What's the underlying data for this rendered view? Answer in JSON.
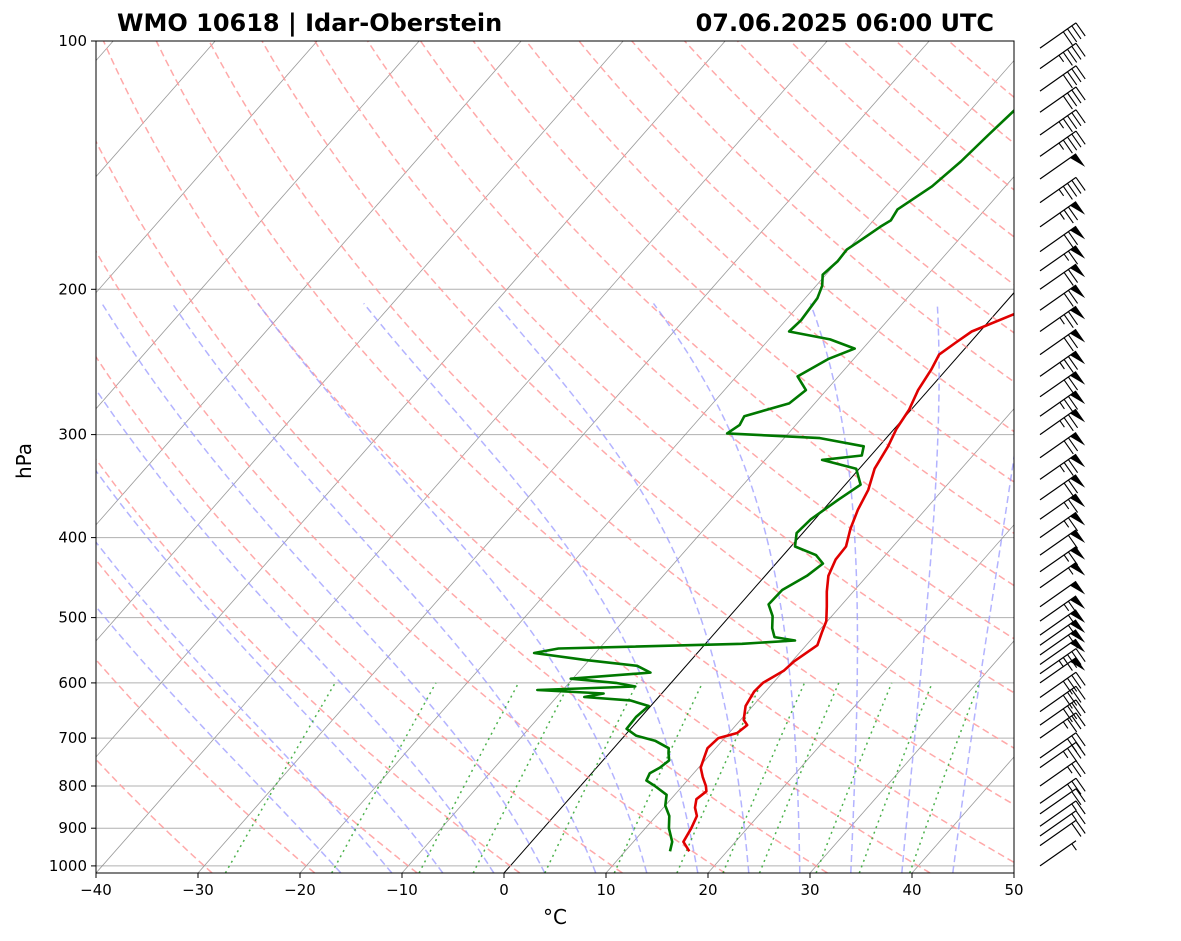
{
  "chart_data": {
    "type": "skew-t log-p",
    "title_left": "WMO 10618 | Idar-Oberstein",
    "title_right": "07.06.2025 06:00 UTC",
    "xlabel": "°C",
    "ylabel": "hPa",
    "xlim": [
      -40,
      50
    ],
    "ylim": [
      1020,
      100
    ],
    "xticks": [
      -40,
      -30,
      -20,
      -10,
      0,
      10,
      20,
      30,
      40,
      50
    ],
    "xtick_labels": [
      "−40",
      "−30",
      "−20",
      "−10",
      "0",
      "10",
      "20",
      "30",
      "40",
      "50"
    ],
    "yticks": [
      1000,
      900,
      800,
      700,
      600,
      500,
      400,
      300,
      200,
      100
    ],
    "ytick_labels": [
      "1000",
      "900",
      "800",
      "700",
      "600",
      "500",
      "400",
      "300",
      "200",
      "100"
    ],
    "grid": true,
    "colors": {
      "temperature": "#e00000",
      "dewpoint": "#007800",
      "dry_adiabats": "#ff9a9a",
      "moist_adiabats": "#9a9aff",
      "mixing_ratio": "#3aaa3a",
      "isotherms": "#808080",
      "zero_isotherm": "#000000",
      "grid": "#b0b0b0"
    },
    "temperature": [
      {
        "p": 960,
        "t": 16.3
      },
      {
        "p": 935,
        "t": 14.9
      },
      {
        "p": 900,
        "t": 14.5
      },
      {
        "p": 870,
        "t": 14.0
      },
      {
        "p": 850,
        "t": 13.1
      },
      {
        "p": 830,
        "t": 12.5
      },
      {
        "p": 812,
        "t": 12.8
      },
      {
        "p": 800,
        "t": 12.3
      },
      {
        "p": 780,
        "t": 11.2
      },
      {
        "p": 760,
        "t": 10.2
      },
      {
        "p": 740,
        "t": 9.7
      },
      {
        "p": 720,
        "t": 9.2
      },
      {
        "p": 700,
        "t": 9.4
      },
      {
        "p": 690,
        "t": 10.8
      },
      {
        "p": 675,
        "t": 11.1
      },
      {
        "p": 665,
        "t": 10.3
      },
      {
        "p": 640,
        "t": 9.3
      },
      {
        "p": 615,
        "t": 8.9
      },
      {
        "p": 600,
        "t": 9.0
      },
      {
        "p": 580,
        "t": 10.0
      },
      {
        "p": 565,
        "t": 10.2
      },
      {
        "p": 540,
        "t": 11.1
      },
      {
        "p": 520,
        "t": 10.4
      },
      {
        "p": 505,
        "t": 9.9
      },
      {
        "p": 485,
        "t": 8.7
      },
      {
        "p": 465,
        "t": 7.4
      },
      {
        "p": 445,
        "t": 6.2
      },
      {
        "p": 425,
        "t": 5.5
      },
      {
        "p": 410,
        "t": 5.4
      },
      {
        "p": 390,
        "t": 4.3
      },
      {
        "p": 370,
        "t": 3.4
      },
      {
        "p": 350,
        "t": 2.7
      },
      {
        "p": 330,
        "t": 1.5
      },
      {
        "p": 310,
        "t": 0.9
      },
      {
        "p": 295,
        "t": 0.2
      },
      {
        "p": 280,
        "t": -0.2
      },
      {
        "p": 265,
        "t": -1.0
      },
      {
        "p": 250,
        "t": -1.5
      },
      {
        "p": 240,
        "t": -2.0
      },
      {
        "p": 232,
        "t": -1.4
      },
      {
        "p": 225,
        "t": -0.8
      },
      {
        "p": 215,
        "t": 1.7
      },
      {
        "p": 208,
        "t": 3.5
      },
      {
        "p": 200,
        "t": 3.7
      },
      {
        "p": 190,
        "t": 5.2
      },
      {
        "p": 180,
        "t": 5.8
      },
      {
        "p": 170,
        "t": 6.6
      },
      {
        "p": 160,
        "t": 8.3
      },
      {
        "p": 150,
        "t": 9.0
      },
      {
        "p": 140,
        "t": 9.5
      },
      {
        "p": 130,
        "t": 10.2
      },
      {
        "p": 120,
        "t": 11.5
      },
      {
        "p": 112,
        "t": 12.7
      },
      {
        "p": 106,
        "t": 14.3
      },
      {
        "p": 100,
        "t": 15.2
      }
    ],
    "dewpoint": [
      {
        "p": 960,
        "t": 14.4
      },
      {
        "p": 935,
        "t": 13.8
      },
      {
        "p": 900,
        "t": 12.3
      },
      {
        "p": 870,
        "t": 11.3
      },
      {
        "p": 845,
        "t": 10.0
      },
      {
        "p": 820,
        "t": 9.2
      },
      {
        "p": 800,
        "t": 7.3
      },
      {
        "p": 788,
        "t": 6.0
      },
      {
        "p": 772,
        "t": 5.7
      },
      {
        "p": 760,
        "t": 6.2
      },
      {
        "p": 745,
        "t": 6.5
      },
      {
        "p": 730,
        "t": 5.8
      },
      {
        "p": 720,
        "t": 5.4
      },
      {
        "p": 705,
        "t": 3.4
      },
      {
        "p": 695,
        "t": 1.1
      },
      {
        "p": 682,
        "t": -0.4
      },
      {
        "p": 660,
        "t": -0.5
      },
      {
        "p": 640,
        "t": -0.2
      },
      {
        "p": 630,
        "t": -2.5
      },
      {
        "p": 624,
        "t": -7.3
      },
      {
        "p": 618,
        "t": -5.7
      },
      {
        "p": 612,
        "t": -12.5
      },
      {
        "p": 606,
        "t": -3.2
      },
      {
        "p": 600,
        "t": -5.4
      },
      {
        "p": 593,
        "t": -10.2
      },
      {
        "p": 583,
        "t": -2.9
      },
      {
        "p": 572,
        "t": -4.8
      },
      {
        "p": 563,
        "t": -10.3
      },
      {
        "p": 552,
        "t": -16.0
      },
      {
        "p": 545,
        "t": -14.0
      },
      {
        "p": 538,
        "t": 3.6
      },
      {
        "p": 533,
        "t": 8.5
      },
      {
        "p": 528,
        "t": 6.2
      },
      {
        "p": 515,
        "t": 5.2
      },
      {
        "p": 498,
        "t": 4.2
      },
      {
        "p": 482,
        "t": 2.8
      },
      {
        "p": 463,
        "t": 2.9
      },
      {
        "p": 445,
        "t": 4.1
      },
      {
        "p": 430,
        "t": 4.6
      },
      {
        "p": 420,
        "t": 3.2
      },
      {
        "p": 410,
        "t": 0.4
      },
      {
        "p": 395,
        "t": -0.6
      },
      {
        "p": 380,
        "t": -0.4
      },
      {
        "p": 360,
        "t": 0.6
      },
      {
        "p": 345,
        "t": 1.5
      },
      {
        "p": 330,
        "t": -0.3
      },
      {
        "p": 322,
        "t": -4.4
      },
      {
        "p": 318,
        "t": -0.9
      },
      {
        "p": 310,
        "t": -1.5
      },
      {
        "p": 303,
        "t": -6.5
      },
      {
        "p": 299,
        "t": -16.0
      },
      {
        "p": 292,
        "t": -15.5
      },
      {
        "p": 285,
        "t": -15.8
      },
      {
        "p": 275,
        "t": -12.5
      },
      {
        "p": 265,
        "t": -12.0
      },
      {
        "p": 255,
        "t": -14.0
      },
      {
        "p": 243,
        "t": -12.5
      },
      {
        "p": 236,
        "t": -10.8
      },
      {
        "p": 230,
        "t": -14.0
      },
      {
        "p": 225,
        "t": -18.7
      },
      {
        "p": 218,
        "t": -18.5
      },
      {
        "p": 205,
        "t": -18.8
      },
      {
        "p": 198,
        "t": -19.4
      },
      {
        "p": 192,
        "t": -20.3
      },
      {
        "p": 185,
        "t": -20.0
      },
      {
        "p": 179,
        "t": -20.1
      },
      {
        "p": 174,
        "t": -19.5
      },
      {
        "p": 168,
        "t": -18.8
      },
      {
        "p": 165,
        "t": -18.3
      },
      {
        "p": 160,
        "t": -18.6
      },
      {
        "p": 150,
        "t": -17.2
      },
      {
        "p": 140,
        "t": -16.5
      },
      {
        "p": 130,
        "t": -16.1
      },
      {
        "p": 120,
        "t": -15.6
      },
      {
        "p": 110,
        "t": -15.2
      },
      {
        "p": 105,
        "t": -14.3
      },
      {
        "p": 100,
        "t": -14.3
      }
    ],
    "wind_barbs": [
      {
        "p": 1000,
        "speed": 5
      },
      {
        "p": 945,
        "speed": 20
      },
      {
        "p": 920,
        "speed": 15
      },
      {
        "p": 895,
        "speed": 15
      },
      {
        "p": 865,
        "speed": 20
      },
      {
        "p": 840,
        "speed": 25
      },
      {
        "p": 800,
        "speed": 25
      },
      {
        "p": 760,
        "speed": 35
      },
      {
        "p": 740,
        "speed": 30
      },
      {
        "p": 700,
        "speed": 35
      },
      {
        "p": 675,
        "speed": 40
      },
      {
        "p": 650,
        "speed": 40
      },
      {
        "p": 625,
        "speed": 40
      },
      {
        "p": 600,
        "speed": 50
      },
      {
        "p": 585,
        "speed": 45
      },
      {
        "p": 570,
        "speed": 50
      },
      {
        "p": 555,
        "speed": 60
      },
      {
        "p": 540,
        "speed": 55
      },
      {
        "p": 525,
        "speed": 60
      },
      {
        "p": 505,
        "speed": 65
      },
      {
        "p": 485,
        "speed": 50
      },
      {
        "p": 460,
        "speed": 55
      },
      {
        "p": 440,
        "speed": 65
      },
      {
        "p": 420,
        "speed": 60
      },
      {
        "p": 400,
        "speed": 65
      },
      {
        "p": 380,
        "speed": 65
      },
      {
        "p": 360,
        "speed": 70
      },
      {
        "p": 340,
        "speed": 75
      },
      {
        "p": 320,
        "speed": 70
      },
      {
        "p": 300,
        "speed": 75
      },
      {
        "p": 285,
        "speed": 75
      },
      {
        "p": 270,
        "speed": 70
      },
      {
        "p": 255,
        "speed": 75
      },
      {
        "p": 240,
        "speed": 70
      },
      {
        "p": 225,
        "speed": 75
      },
      {
        "p": 212,
        "speed": 70
      },
      {
        "p": 200,
        "speed": 70
      },
      {
        "p": 190,
        "speed": 65
      },
      {
        "p": 180,
        "speed": 70
      },
      {
        "p": 168,
        "speed": 75
      },
      {
        "p": 157,
        "speed": 45
      },
      {
        "p": 147,
        "speed": 50
      },
      {
        "p": 138,
        "speed": 45
      },
      {
        "p": 130,
        "speed": 45
      },
      {
        "p": 122,
        "speed": 40
      },
      {
        "p": 115,
        "speed": 40
      },
      {
        "p": 108,
        "speed": 45
      },
      {
        "p": 102,
        "speed": 40
      }
    ]
  }
}
